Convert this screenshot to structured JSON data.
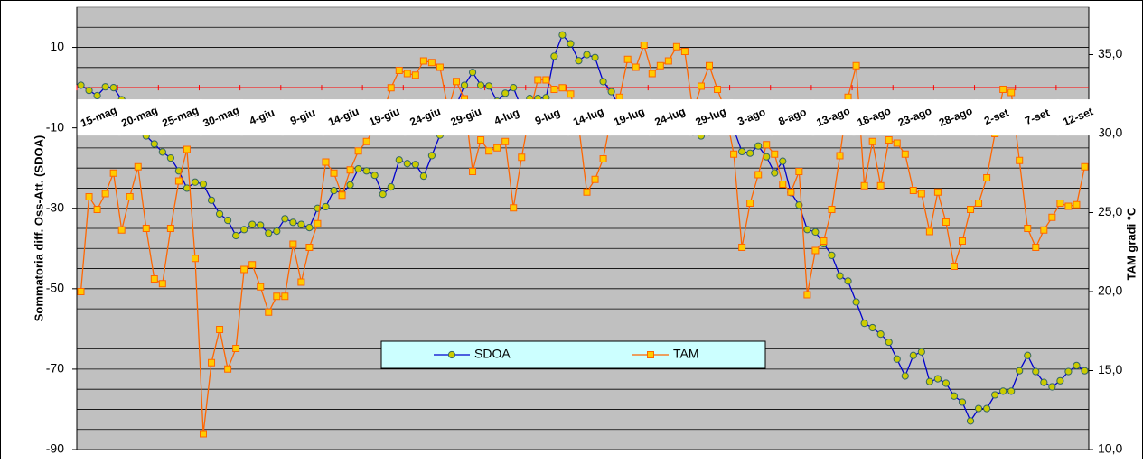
{
  "chart_data": {
    "type": "line",
    "y_label": "Sommatoria diff. Oss-Att. (SDOA)",
    "y2_label": "TAM gradi °C",
    "categories": [
      "15-mag",
      null,
      null,
      null,
      null,
      "20-mag",
      null,
      null,
      null,
      null,
      "25-mag",
      null,
      null,
      null,
      null,
      "30-mag",
      null,
      null,
      null,
      null,
      "4-giu",
      null,
      null,
      null,
      null,
      "9-giu",
      null,
      null,
      null,
      null,
      "14-giu",
      null,
      null,
      null,
      null,
      "19-giu",
      null,
      null,
      null,
      null,
      "24-giu",
      null,
      null,
      null,
      null,
      "29-giu",
      null,
      null,
      null,
      null,
      "4-lug",
      null,
      null,
      null,
      null,
      "9-lug",
      null,
      null,
      null,
      null,
      "14-lug",
      null,
      null,
      null,
      null,
      "19-lug",
      null,
      null,
      null,
      null,
      "24-lug",
      null,
      null,
      null,
      null,
      "29-lug",
      null,
      null,
      null,
      null,
      "3-ago",
      null,
      null,
      null,
      null,
      "8-ago",
      null,
      null,
      null,
      null,
      "13-ago",
      null,
      null,
      null,
      null,
      "18-ago",
      null,
      null,
      null,
      null,
      "23-ago",
      null,
      null,
      null,
      null,
      "28-ago",
      null,
      null,
      null,
      null,
      "2-set",
      null,
      null,
      null,
      null,
      "7-set",
      null,
      null,
      null,
      null,
      "12-set",
      null,
      null,
      null
    ],
    "series": [
      {
        "name": "SDOA",
        "color": "#0000cc",
        "marker_color": "#cccc00",
        "values": [
          0.6,
          -0.7,
          -2,
          0.2,
          0,
          -3,
          -6,
          -9,
          -12,
          -14,
          -16,
          -17.5,
          -20.7,
          -25,
          -23.5,
          -24,
          -28,
          -31.4,
          -33,
          -36.8,
          -35.3,
          -34,
          -34.2,
          -36.2,
          -35.7,
          -32.6,
          -33.5,
          -34,
          -34.8,
          -30,
          -29.6,
          -25.6,
          -26.2,
          -24.2,
          -20.2,
          -20.7,
          -21.8,
          -26.5,
          -24.7,
          -18,
          -18.9,
          -19.1,
          -22,
          -16.9,
          -11.8,
          -6.7,
          -4.5,
          0.6,
          3.8,
          0.6,
          0.4,
          -3.4,
          -1.4,
          0,
          -5.2,
          -2.7,
          -2.7,
          -2.5,
          7.8,
          13.1,
          10.9,
          6.7,
          8.2,
          7.5,
          1.5,
          -1,
          -5,
          -7,
          -8,
          -9,
          -8,
          -7,
          -8,
          -9,
          -10,
          -11,
          -12,
          -11,
          -10,
          -9,
          -10.3,
          -15.9,
          -16.3,
          -14.5,
          -17.2,
          -21.2,
          -18.3,
          -26.1,
          -29.2,
          -35.3,
          -35.9,
          -38.8,
          -41.7,
          -46.8,
          -48.1,
          -53.3,
          -58.6,
          -59.7,
          -61.3,
          -63.3,
          -67.5,
          -71.7,
          -66.6,
          -65.7,
          -73.1,
          -72.4,
          -73.5,
          -76.7,
          -78.2,
          -82.9,
          -79.8,
          -79.8,
          -76.4,
          -75.5,
          -75.5,
          -70.4,
          -66.6,
          -70.6,
          -73.3,
          -74.4,
          -72.9,
          -70.6,
          -69.1,
          -70.4
        ]
      },
      {
        "name": "TAM",
        "axis": "y2",
        "color": "#ff6600",
        "marker_color": "#ffcc00",
        "values": [
          20.0,
          26.0,
          25.2,
          26.2,
          27.5,
          23.9,
          26.0,
          27.9,
          24.0,
          20.8,
          20.5,
          24.0,
          27.0,
          29.0,
          22.1,
          11.0,
          15.5,
          17.6,
          15.1,
          16.4,
          21.4,
          21.7,
          20.3,
          18.7,
          19.7,
          19.7,
          23.0,
          20.6,
          22.8,
          24.3,
          28.2,
          27.5,
          26.1,
          27.7,
          28.9,
          29.5,
          30.4,
          31.2,
          32.9,
          34.0,
          33.8,
          33.7,
          34.6,
          34.5,
          34.2,
          31.5,
          33.3,
          32.2,
          27.6,
          29.6,
          28.9,
          29.1,
          29.5,
          25.3,
          28.5,
          31.3,
          33.4,
          33.4,
          32.8,
          32.9,
          32.5,
          30.5,
          26.3,
          27.1,
          28.4,
          31.1,
          32.3,
          34.7,
          34.2,
          35.6,
          33.8,
          34.3,
          34.6,
          35.5,
          35.2,
          31.4,
          33.0,
          34.3,
          32.8,
          31.4,
          28.7,
          22.8,
          25.6,
          27.4,
          29.3,
          28.7,
          26.8,
          26.3,
          27.6,
          19.8,
          22.6,
          23.2,
          25.2,
          28.6,
          32.3,
          34.3,
          26.7,
          29.5,
          26.7,
          29.6,
          29.4,
          28.7,
          26.4,
          26.2,
          23.8,
          26.3,
          24.4,
          21.6,
          23.2,
          25.2,
          25.6,
          27.2,
          30.0,
          32.8,
          32.6,
          28.3,
          24.0,
          22.8,
          23.9,
          24.7,
          25.6,
          25.4,
          25.5,
          27.9
        ]
      }
    ],
    "ylim": [
      -90,
      20
    ],
    "yticks": [
      10,
      -10,
      -30,
      -50,
      -70,
      -90
    ],
    "ygrid": [
      15,
      10,
      5,
      0,
      -5,
      -10,
      -15,
      -20,
      -25,
      -30,
      -35,
      -40,
      -45,
      -50,
      -55,
      -60,
      -65,
      -70,
      -75,
      -80,
      -85,
      -90
    ],
    "zero_line_color": "#ff0000",
    "y2lim": [
      10,
      38
    ],
    "y2ticks": [
      {
        "value": 35,
        "label": "35,0"
      },
      {
        "value": 30,
        "label": "30,0"
      },
      {
        "value": 25,
        "label": "25,0"
      },
      {
        "value": 20,
        "label": "20,0"
      },
      {
        "value": 15,
        "label": "15,0"
      },
      {
        "value": 10,
        "label": "10,0"
      }
    ],
    "background": "#c0c0c0",
    "legend_color": "#ccffff",
    "legend": "bottom-center"
  }
}
